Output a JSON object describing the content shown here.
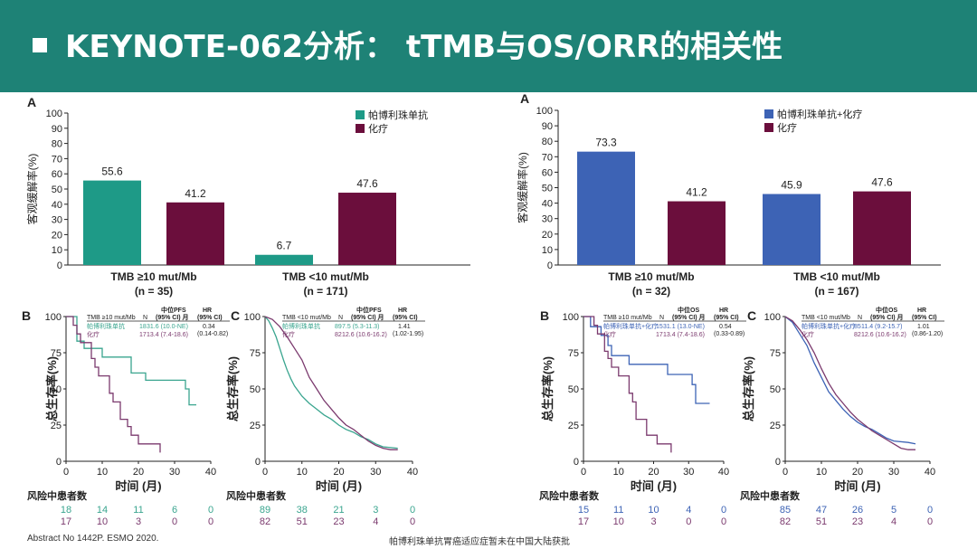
{
  "header": {
    "title": "KEYNOTE-062分析： tTMB与OS/ORR的相关性"
  },
  "colors": {
    "teal": "#1e9a87",
    "maroon": "#6b0e3c",
    "blue": "#3d63b5",
    "purple": "#7b3a6e",
    "green": "#3aa58f"
  },
  "chart_data": [
    {
      "panel": "A",
      "type": "bar",
      "ylabel": "客观缓解率(%)",
      "ylim": [
        0,
        100
      ],
      "yticks": [
        0,
        10,
        20,
        30,
        40,
        50,
        60,
        70,
        80,
        90,
        100
      ],
      "legend": [
        "帕博利珠单抗",
        "化疗"
      ],
      "groups": [
        {
          "label": "TMB ≥10 mut/Mb",
          "n": "(n = 35)",
          "values": [
            55.6,
            41.2
          ],
          "labels": [
            "55.6",
            "41.2"
          ]
        },
        {
          "label": "TMB <10 mut/Mb",
          "n": "(n = 171)",
          "values": [
            6.7,
            47.6
          ],
          "labels": [
            "6.7",
            "47.6"
          ]
        }
      ]
    },
    {
      "panel": "A",
      "type": "bar",
      "ylabel": "客观缓解率(%)",
      "ylim": [
        0,
        100
      ],
      "yticks": [
        0,
        10,
        20,
        30,
        40,
        50,
        60,
        70,
        80,
        90,
        100
      ],
      "legend": [
        "帕博利珠单抗+化疗",
        "化疗"
      ],
      "groups": [
        {
          "label": "TMB ≥10 mut/Mb",
          "n": "(n = 32)",
          "values": [
            73.3,
            41.2
          ],
          "labels": [
            "73.3",
            "41.2"
          ]
        },
        {
          "label": "TMB <10 mut/Mb",
          "n": "(n = 167)",
          "values": [
            45.9,
            47.6
          ],
          "labels": [
            "45.9",
            "47.6"
          ]
        }
      ]
    },
    {
      "panel": "B",
      "type": "line",
      "subtype": "kaplan-meier",
      "ylabel": "总生存率(%)",
      "xlabel": "时间 (月)",
      "xlim": [
        0,
        40
      ],
      "ylim": [
        0,
        100
      ],
      "xticks": [
        0,
        10,
        20,
        30,
        40
      ],
      "yticks": [
        0,
        25,
        50,
        75,
        100
      ],
      "table_header": {
        "group": "TMB ≥10 mut/Mb",
        "n": "N",
        "mid": "中位PFS",
        "ci": "(95% CI) 月",
        "hr": "HR",
        "hrci": "(95% CI)"
      },
      "series": [
        {
          "name": "帕博利珠单抗",
          "n": "18",
          "median": "31.6 (10.0-NE)",
          "hr": "0.34",
          "hrci": "(0.14-0.82)",
          "points": [
            [
              0,
              100
            ],
            [
              3,
              100
            ],
            [
              3,
              83
            ],
            [
              5,
              83
            ],
            [
              5,
              78
            ],
            [
              10,
              78
            ],
            [
              10,
              72
            ],
            [
              18,
              72
            ],
            [
              18,
              61
            ],
            [
              22,
              61
            ],
            [
              22,
              56
            ],
            [
              33,
              56
            ],
            [
              33,
              50
            ],
            [
              34,
              50
            ],
            [
              34,
              39
            ],
            [
              36,
              39
            ]
          ]
        },
        {
          "name": "化疗",
          "n": "17",
          "median": "13.4 (7.4-18.6)",
          "points": [
            [
              0,
              100
            ],
            [
              2,
              100
            ],
            [
              2,
              94
            ],
            [
              3,
              94
            ],
            [
              3,
              88
            ],
            [
              4,
              88
            ],
            [
              4,
              82
            ],
            [
              7,
              82
            ],
            [
              7,
              71
            ],
            [
              8,
              71
            ],
            [
              8,
              65
            ],
            [
              9,
              65
            ],
            [
              9,
              59
            ],
            [
              12,
              59
            ],
            [
              12,
              47
            ],
            [
              13,
              47
            ],
            [
              13,
              41
            ],
            [
              15,
              41
            ],
            [
              15,
              29
            ],
            [
              17,
              29
            ],
            [
              17,
              24
            ],
            [
              18,
              24
            ],
            [
              18,
              18
            ],
            [
              20,
              18
            ],
            [
              20,
              12
            ],
            [
              26,
              12
            ],
            [
              26,
              6
            ]
          ]
        }
      ],
      "risk": {
        "label": "风险中患者数",
        "rows": [
          [
            "18",
            "14",
            "11",
            "6",
            "0"
          ],
          [
            "17",
            "10",
            "3",
            "0",
            "0"
          ]
        ]
      }
    },
    {
      "panel": "C",
      "type": "line",
      "subtype": "kaplan-meier",
      "ylabel": "总生存率(%)",
      "xlabel": "时间 (月)",
      "xlim": [
        0,
        40
      ],
      "ylim": [
        0,
        100
      ],
      "xticks": [
        0,
        10,
        20,
        30,
        40
      ],
      "yticks": [
        0,
        25,
        50,
        75,
        100
      ],
      "table_header": {
        "group": "TMB <10 mut/Mb",
        "n": "N",
        "mid": "中位PFS",
        "ci": "(95% CI) 月",
        "hr": "HR",
        "hrci": "(95% CI)"
      },
      "series": [
        {
          "name": "帕博利珠单抗",
          "n": "89",
          "median": "7.5 (5.3-11.3)",
          "hr": "1.41",
          "hrci": "(1.02-1.95)",
          "points": [
            [
              0,
              100
            ],
            [
              1,
              97
            ],
            [
              2,
              92
            ],
            [
              3,
              86
            ],
            [
              4,
              78
            ],
            [
              5,
              70
            ],
            [
              6,
              63
            ],
            [
              7,
              57
            ],
            [
              8,
              52
            ],
            [
              10,
              45
            ],
            [
              12,
              40
            ],
            [
              14,
              36
            ],
            [
              16,
              32
            ],
            [
              18,
              29
            ],
            [
              20,
              25
            ],
            [
              22,
              22
            ],
            [
              24,
              20
            ],
            [
              26,
              17
            ],
            [
              28,
              15
            ],
            [
              30,
              12
            ],
            [
              32,
              10
            ],
            [
              36,
              9
            ]
          ]
        },
        {
          "name": "化疗",
          "n": "82",
          "median": "12.6 (10.6-16.2)",
          "points": [
            [
              0,
              100
            ],
            [
              2,
              98
            ],
            [
              4,
              93
            ],
            [
              6,
              86
            ],
            [
              8,
              78
            ],
            [
              10,
              70
            ],
            [
              12,
              58
            ],
            [
              14,
              50
            ],
            [
              16,
              42
            ],
            [
              18,
              36
            ],
            [
              20,
              30
            ],
            [
              22,
              25
            ],
            [
              24,
              22
            ],
            [
              26,
              18
            ],
            [
              28,
              14
            ],
            [
              30,
              11
            ],
            [
              32,
              9
            ],
            [
              34,
              8
            ],
            [
              36,
              8
            ]
          ]
        }
      ],
      "risk": {
        "label": "风险中患者数",
        "rows": [
          [
            "89",
            "38",
            "21",
            "3",
            "0"
          ],
          [
            "82",
            "51",
            "23",
            "4",
            "0"
          ]
        ]
      }
    },
    {
      "panel": "B",
      "type": "line",
      "subtype": "kaplan-meier",
      "ylabel": "总生存率(%)",
      "xlabel": "时间 (月)",
      "xlim": [
        0,
        40
      ],
      "ylim": [
        0,
        100
      ],
      "xticks": [
        0,
        10,
        20,
        30,
        40
      ],
      "yticks": [
        0,
        25,
        50,
        75,
        100
      ],
      "table_header": {
        "group": "TMB ≥10 mut/Mb",
        "n": "N",
        "mid": "中位OS",
        "ci": "(95% CI) 月",
        "hr": "HR",
        "hrci": "(95% CI)"
      },
      "series": [
        {
          "name": "帕博利珠单抗+化疗",
          "n": "15",
          "median": "31.1 (13.0-NE)",
          "hr": "0.54",
          "hrci": "(0.33-0.89)",
          "points": [
            [
              0,
              100
            ],
            [
              2,
              100
            ],
            [
              2,
              93
            ],
            [
              5,
              93
            ],
            [
              5,
              87
            ],
            [
              7,
              87
            ],
            [
              7,
              80
            ],
            [
              8,
              80
            ],
            [
              8,
              73
            ],
            [
              13,
              73
            ],
            [
              13,
              67
            ],
            [
              24,
              67
            ],
            [
              24,
              60
            ],
            [
              31,
              60
            ],
            [
              31,
              53
            ],
            [
              32,
              53
            ],
            [
              32,
              40
            ],
            [
              36,
              40
            ]
          ]
        },
        {
          "name": "化疗",
          "n": "17",
          "median": "13.4 (7.4-18.6)",
          "points": [
            [
              0,
              100
            ],
            [
              3,
              100
            ],
            [
              3,
              94
            ],
            [
              4,
              94
            ],
            [
              4,
              88
            ],
            [
              6,
              88
            ],
            [
              6,
              76
            ],
            [
              7,
              76
            ],
            [
              7,
              71
            ],
            [
              8,
              71
            ],
            [
              8,
              65
            ],
            [
              10,
              65
            ],
            [
              10,
              59
            ],
            [
              13,
              59
            ],
            [
              13,
              47
            ],
            [
              14,
              47
            ],
            [
              14,
              41
            ],
            [
              15,
              41
            ],
            [
              15,
              29
            ],
            [
              18,
              29
            ],
            [
              18,
              18
            ],
            [
              21,
              18
            ],
            [
              21,
              12
            ],
            [
              25,
              12
            ],
            [
              25,
              6
            ]
          ]
        }
      ],
      "risk": {
        "label": "风险中患者数",
        "rows": [
          [
            "15",
            "11",
            "10",
            "4",
            "0"
          ],
          [
            "17",
            "10",
            "3",
            "0",
            "0"
          ]
        ]
      }
    },
    {
      "panel": "C",
      "type": "line",
      "subtype": "kaplan-meier",
      "ylabel": "总生存率(%)",
      "xlabel": "时间 (月)",
      "xlim": [
        0,
        40
      ],
      "ylim": [
        0,
        100
      ],
      "xticks": [
        0,
        10,
        20,
        30,
        40
      ],
      "yticks": [
        0,
        25,
        50,
        75,
        100
      ],
      "table_header": {
        "group": "TMB <10 mut/Mb",
        "n": "N",
        "mid": "中位OS",
        "ci": "(95% CI) 月",
        "hr": "HR",
        "hrci": "(95% CI)"
      },
      "series": [
        {
          "name": "帕博利珠单抗+化疗",
          "n": "85",
          "median": "11.4 (9.2-15.7)",
          "hr": "1.01",
          "hrci": "(0.86-1.20)",
          "points": [
            [
              0,
              100
            ],
            [
              2,
              96
            ],
            [
              4,
              88
            ],
            [
              6,
              80
            ],
            [
              8,
              68
            ],
            [
              10,
              58
            ],
            [
              12,
              48
            ],
            [
              14,
              42
            ],
            [
              16,
              36
            ],
            [
              18,
              31
            ],
            [
              20,
              27
            ],
            [
              22,
              24
            ],
            [
              24,
              22
            ],
            [
              26,
              19
            ],
            [
              28,
              16
            ],
            [
              30,
              14
            ],
            [
              34,
              13
            ],
            [
              36,
              12
            ]
          ]
        },
        {
          "name": "化疗",
          "n": "82",
          "median": "12.6 (10.6-16.2)",
          "points": [
            [
              0,
              100
            ],
            [
              2,
              97
            ],
            [
              4,
              91
            ],
            [
              6,
              84
            ],
            [
              8,
              75
            ],
            [
              10,
              64
            ],
            [
              12,
              54
            ],
            [
              14,
              46
            ],
            [
              16,
              40
            ],
            [
              18,
              34
            ],
            [
              20,
              29
            ],
            [
              22,
              25
            ],
            [
              24,
              21
            ],
            [
              26,
              18
            ],
            [
              28,
              15
            ],
            [
              30,
              12
            ],
            [
              32,
              9
            ],
            [
              34,
              8
            ],
            [
              36,
              8
            ]
          ]
        }
      ],
      "risk": {
        "label": "风险中患者数",
        "rows": [
          [
            "85",
            "47",
            "26",
            "5",
            "0"
          ],
          [
            "82",
            "51",
            "23",
            "4",
            "0"
          ]
        ]
      }
    }
  ],
  "footer": {
    "abstract": "Abstract No 1442P. ESMO 2020.",
    "note": "帕博利珠单抗胃癌适应症暂未在中国大陆获批"
  }
}
